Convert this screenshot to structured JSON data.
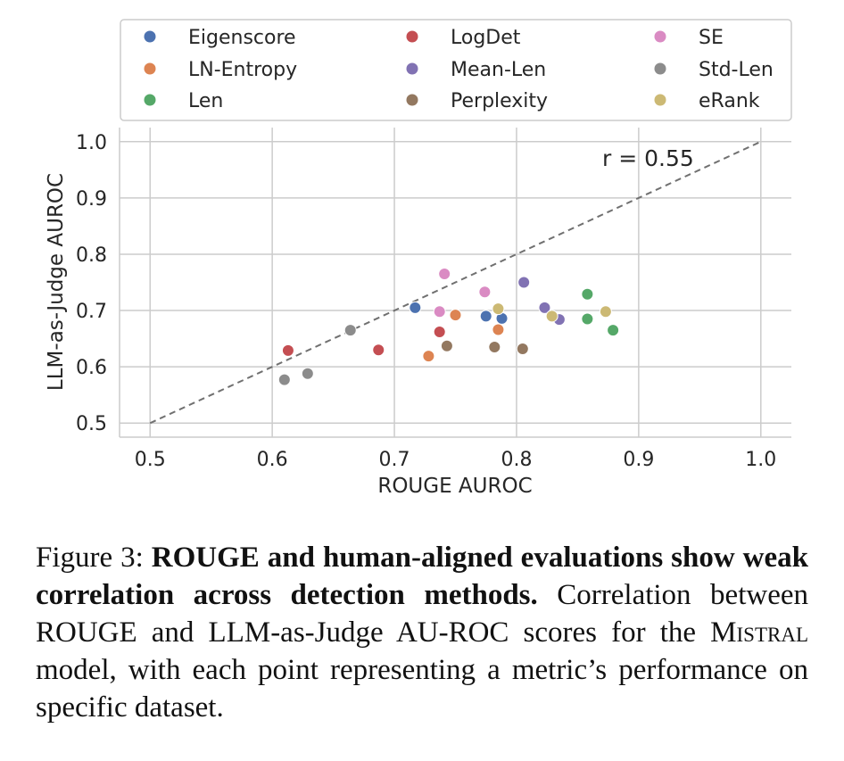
{
  "chart_data": {
    "type": "scatter",
    "xlabel": "ROUGE AUROC",
    "ylabel": "LLM-as-Judge AUROC",
    "xlim": [
      0.475,
      1.025
    ],
    "ylim": [
      0.475,
      1.025
    ],
    "xticks": [
      "0.5",
      "0.6",
      "0.7",
      "0.8",
      "0.9",
      "1.0"
    ],
    "yticks": [
      "0.5",
      "0.6",
      "0.7",
      "0.8",
      "0.9",
      "1.0"
    ],
    "grid": true,
    "legend_position": "top",
    "annotation": "r = 0.55",
    "reference_line": {
      "style": "dashed",
      "from": [
        0.5,
        0.5
      ],
      "to": [
        1.0,
        1.0
      ],
      "color": "#707070"
    },
    "series": [
      {
        "name": "Eigenscore",
        "color": "#4c72b0",
        "points": [
          [
            0.717,
            0.705
          ],
          [
            0.775,
            0.69
          ],
          [
            0.788,
            0.686
          ]
        ]
      },
      {
        "name": "LogDet",
        "color": "#c44e52",
        "points": [
          [
            0.613,
            0.629
          ],
          [
            0.687,
            0.63
          ],
          [
            0.737,
            0.662
          ]
        ]
      },
      {
        "name": "SE",
        "color": "#da8bc3",
        "points": [
          [
            0.741,
            0.765
          ],
          [
            0.737,
            0.698
          ],
          [
            0.774,
            0.733
          ]
        ]
      },
      {
        "name": "LN-Entropy",
        "color": "#dd8452",
        "points": [
          [
            0.728,
            0.619
          ],
          [
            0.75,
            0.692
          ],
          [
            0.785,
            0.666
          ]
        ]
      },
      {
        "name": "Mean-Len",
        "color": "#8172b3",
        "points": [
          [
            0.806,
            0.75
          ],
          [
            0.823,
            0.705
          ],
          [
            0.835,
            0.684
          ]
        ]
      },
      {
        "name": "Std-Len",
        "color": "#8c8c8c",
        "points": [
          [
            0.61,
            0.577
          ],
          [
            0.629,
            0.588
          ],
          [
            0.664,
            0.665
          ]
        ]
      },
      {
        "name": "Len",
        "color": "#55a868",
        "points": [
          [
            0.858,
            0.729
          ],
          [
            0.858,
            0.685
          ],
          [
            0.879,
            0.665
          ]
        ]
      },
      {
        "name": "Perplexity",
        "color": "#937860",
        "points": [
          [
            0.743,
            0.637
          ],
          [
            0.782,
            0.635
          ],
          [
            0.805,
            0.632
          ]
        ]
      },
      {
        "name": "eRank",
        "color": "#ccb974",
        "points": [
          [
            0.785,
            0.703
          ],
          [
            0.829,
            0.69
          ],
          [
            0.873,
            0.698
          ]
        ]
      }
    ]
  },
  "caption": {
    "label": "Figure 3:",
    "bold": "ROUGE and human-aligned evaluations show weak correlation across detection methods.",
    "text_before": "Correlation between ROUGE and LLM-as-Judge AU-ROC scores for the",
    "model": "Mistral",
    "text_after": "model, with each point representing a metric’s performance on specific dataset."
  }
}
